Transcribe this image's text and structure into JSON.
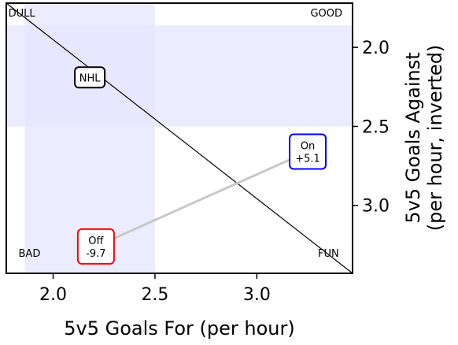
{
  "chart_data": {
    "type": "scatter",
    "title": "",
    "xlabel": "5v5 Goals For (per hour)",
    "ylabel": "5v5 Goals Against\n(per hour, inverted)",
    "xlim": [
      1.77,
      3.47
    ],
    "ylim": [
      1.72,
      3.43
    ],
    "y_inverted": true,
    "grid": false,
    "x_ticks": [
      "2.0",
      "2.5",
      "3.0"
    ],
    "x_tick_values": [
      2.0,
      2.5,
      3.0
    ],
    "y_ticks": [
      "2.0",
      "2.5",
      "3.0"
    ],
    "y_tick_values": [
      2.0,
      2.5,
      3.0
    ],
    "y_axis_side": "right",
    "shaded_regions": [
      {
        "x_range": [
          1.86,
          2.5
        ],
        "y_range": [
          1.72,
          3.43
        ],
        "color": "#e6e6ff"
      },
      {
        "x_range": [
          1.77,
          3.47
        ],
        "y_range": [
          1.86,
          2.5
        ],
        "color": "#e6e6ff"
      }
    ],
    "reference_line": {
      "points": [
        [
          1.77,
          1.72
        ],
        [
          3.47,
          3.43
        ]
      ],
      "color": "#000000"
    },
    "connector": {
      "points": [
        [
          2.21,
          3.26
        ],
        [
          3.25,
          2.66
        ]
      ],
      "color": "#c8c8c8"
    },
    "quadrant_labels": [
      {
        "text": "DULL",
        "x": 1.78,
        "y": 1.78
      },
      {
        "text": "GOOD",
        "x": 3.42,
        "y": 1.78
      },
      {
        "text": "BAD",
        "x": 1.83,
        "y": 3.3
      },
      {
        "text": "FUN",
        "x": 3.3,
        "y": 3.3
      }
    ],
    "points": [
      {
        "lines": [
          "NHL"
        ],
        "x": 2.18,
        "y": 2.19,
        "border": "#000000"
      },
      {
        "lines": [
          "On",
          "+5.1"
        ],
        "x": 3.25,
        "y": 2.66,
        "border": "#0000ff"
      },
      {
        "lines": [
          "Off",
          "-9.7"
        ],
        "x": 2.21,
        "y": 3.26,
        "border": "#ff0000"
      }
    ]
  }
}
